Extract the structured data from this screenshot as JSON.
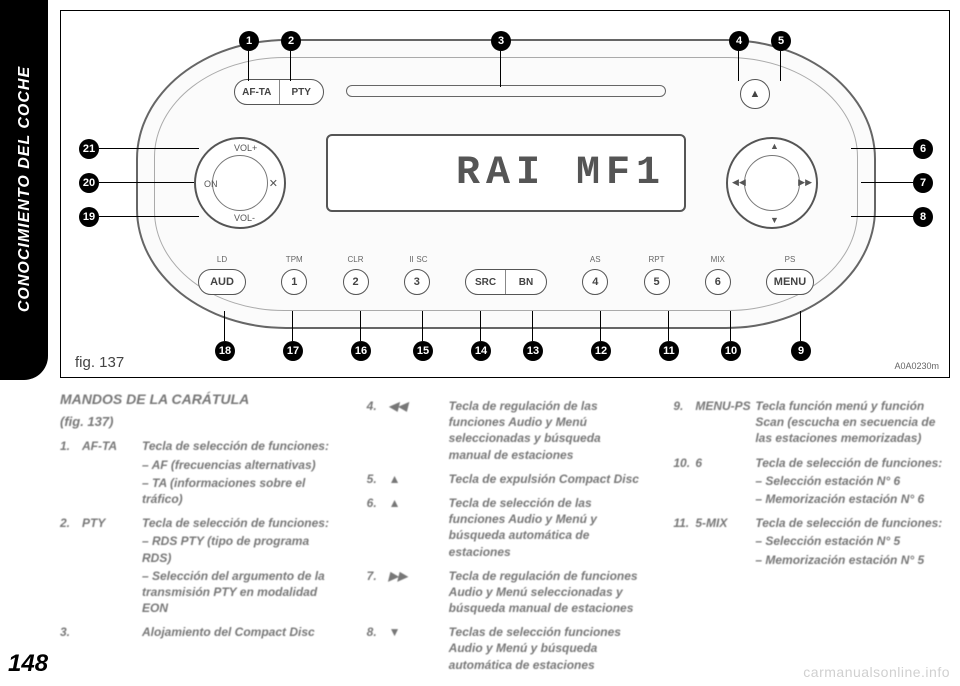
{
  "page": {
    "side_tab": "CONOCIMIENTO DEL COCHE",
    "page_number": "148",
    "watermark": "carmanualsonline.info"
  },
  "figure": {
    "label": "fig. 137",
    "code": "A0A0230m",
    "display_text": "RAI MF1",
    "pill_left": "AF-TA",
    "pill_right": "PTY",
    "eject_symbol": "▲",
    "left_knob": {
      "top": "VOL+",
      "left": "ON",
      "right": "✕",
      "bottom": "VOL-"
    },
    "right_knob": {
      "top": "▲",
      "bottom": "▼",
      "left": "◀◀",
      "right": "▶▶"
    },
    "row_labels": {
      "ld": "LD",
      "tpm": "TPM",
      "clr": "CLR",
      "ii": "II",
      "sc": "SC",
      "as": "AS",
      "rpt": "RPT",
      "mix": "MIX",
      "ps": "PS"
    },
    "row_buttons": {
      "aud": "AUD",
      "b1": "1",
      "b2": "2",
      "b3": "3",
      "src": "SRC",
      "bn": "BN",
      "b4": "4",
      "b5": "5",
      "b6": "6",
      "menu": "MENU"
    },
    "callouts_top": {
      "c1": "1",
      "c2": "2",
      "c3": "3",
      "c4": "4",
      "c5": "5"
    },
    "callouts_right": {
      "c6": "6",
      "c7": "7",
      "c8": "8"
    },
    "callouts_bottom": {
      "c9": "9",
      "c10": "10",
      "c11": "11",
      "c12": "12",
      "c13": "13",
      "c14": "14",
      "c15": "15",
      "c16": "16",
      "c17": "17",
      "c18": "18"
    },
    "callouts_left": {
      "c19": "19",
      "c20": "20",
      "c21": "21"
    }
  },
  "text": {
    "heading": "MANDOS DE LA CARÁTULA",
    "heading_sub": "(fig. 137)",
    "col1": [
      {
        "n": "1.",
        "k": "AF-TA",
        "d": "Tecla de selección de funciones:",
        "subs": [
          "– AF (frecuencias alternativas)",
          "– TA (informaciones sobre el tráfico)"
        ]
      },
      {
        "n": "2.",
        "k": "PTY",
        "d": "Tecla de selección de funciones:",
        "subs": [
          "– RDS PTY (tipo de programa RDS)",
          "– Selección del argumento de la transmisión PTY en modalidad EON"
        ]
      },
      {
        "n": "3.",
        "k": "",
        "d": "Alojamiento del Compact Disc"
      }
    ],
    "col2": [
      {
        "n": "4.",
        "k": "◀◀",
        "d": "Tecla de regulación de las funciones Audio y Menú seleccionadas y búsqueda manual de estaciones"
      },
      {
        "n": "5.",
        "k": "▲",
        "d": "Tecla de expulsión Compact Disc"
      },
      {
        "n": "6.",
        "k": "▲",
        "d": "Tecla de selección de las funciones Audio y Menú y búsqueda automática de estaciones"
      },
      {
        "n": "7.",
        "k": "▶▶",
        "d": "Tecla de regulación de funciones Audio y Menú seleccionadas y búsqueda manual de estaciones"
      },
      {
        "n": "8.",
        "k": "▼",
        "d": "Teclas de selección funciones Audio y Menú y búsqueda automática de estaciones"
      }
    ],
    "col3": [
      {
        "n": "9.",
        "k": "MENU-PS",
        "d": "Tecla función menú y función Scan (escucha en secuencia de las estaciones memorizadas)"
      },
      {
        "n": "10.",
        "k": "6",
        "d": "Tecla de selección de funciones:",
        "subs": [
          "– Selección estación N° 6",
          "– Memorización estación N° 6"
        ]
      },
      {
        "n": "11.",
        "k": "5-MIX",
        "d": "Tecla de selección de funciones:",
        "subs": [
          "– Selección estación N° 5",
          "– Memorización estación N° 5"
        ]
      }
    ]
  },
  "style": {
    "page_bg": "#ffffff",
    "tab_bg": "#000000",
    "tab_text": "#ffffff",
    "body_text": "#777777",
    "figure_border": "#000000",
    "display_font": "Courier New",
    "dot_bg": "#000000"
  }
}
